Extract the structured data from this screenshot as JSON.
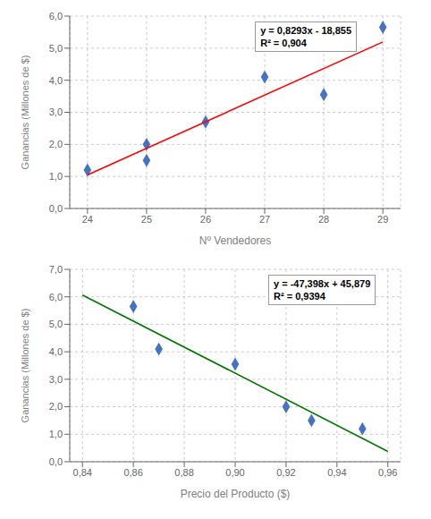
{
  "chart_data": [
    {
      "type": "scatter",
      "x_label": "Nº Vendedores",
      "y_label": "Ganancias  (Millones de $)",
      "xlim": [
        23.7,
        29.3
      ],
      "ylim": [
        0.0,
        6.0
      ],
      "xticks": [
        24,
        25,
        26,
        27,
        28,
        29
      ],
      "yticks": [
        {
          "value": 0,
          "label": "0,0"
        },
        {
          "value": 1,
          "label": "1,0"
        },
        {
          "value": 2,
          "label": "2,0"
        },
        {
          "value": 3,
          "label": "3,0"
        },
        {
          "value": 4,
          "label": "4,0"
        },
        {
          "value": 5,
          "label": "5,0"
        },
        {
          "value": 6,
          "label": "6,0"
        }
      ],
      "grid": true,
      "annotations": [
        "y = 0,8293x - 18,855",
        "R² = 0,904"
      ],
      "series": [
        {
          "type": "scatter",
          "marker": "diamond",
          "color": "#4472c4",
          "x": [
            24,
            25,
            25,
            26,
            27,
            28,
            29
          ],
          "values": [
            1.2,
            2.0,
            1.5,
            2.7,
            4.1,
            3.55,
            5.65
          ]
        },
        {
          "type": "line",
          "color": "#ff0000",
          "x": [
            24,
            29
          ],
          "values": [
            1.0482,
            5.1947
          ]
        }
      ]
    },
    {
      "type": "scatter",
      "x_label": "Precio del Producto ($)",
      "y_label": "Ganancias  (Millones de $)",
      "xlim": [
        0.835,
        0.965
      ],
      "ylim": [
        0.0,
        7.0
      ],
      "xticks": [
        {
          "value": 0.84,
          "label": "0,84"
        },
        {
          "value": 0.86,
          "label": "0,86"
        },
        {
          "value": 0.88,
          "label": "0,88"
        },
        {
          "value": 0.9,
          "label": "0,90"
        },
        {
          "value": 0.92,
          "label": "0,92"
        },
        {
          "value": 0.94,
          "label": "0,94"
        },
        {
          "value": 0.96,
          "label": "0,96"
        }
      ],
      "yticks": [
        {
          "value": 0,
          "label": "0,0"
        },
        {
          "value": 1,
          "label": "1,0"
        },
        {
          "value": 2,
          "label": "2,0"
        },
        {
          "value": 3,
          "label": "3,0"
        },
        {
          "value": 4,
          "label": "4,0"
        },
        {
          "value": 5,
          "label": "5,0"
        },
        {
          "value": 6,
          "label": "6,0"
        },
        {
          "value": 7,
          "label": "7,0"
        }
      ],
      "grid": true,
      "annotations": [
        "y = -47,398x + 45,879",
        "R² = 0,9394"
      ],
      "series": [
        {
          "type": "scatter",
          "marker": "diamond",
          "color": "#4472c4",
          "x": [
            0.86,
            0.87,
            0.9,
            0.92,
            0.93,
            0.95
          ],
          "values": [
            5.65,
            4.1,
            3.55,
            2.0,
            1.5,
            1.2
          ]
        },
        {
          "type": "line",
          "color": "#007700",
          "x": [
            0.84,
            0.96
          ],
          "values": [
            6.06468,
            0.37692
          ]
        }
      ]
    }
  ]
}
